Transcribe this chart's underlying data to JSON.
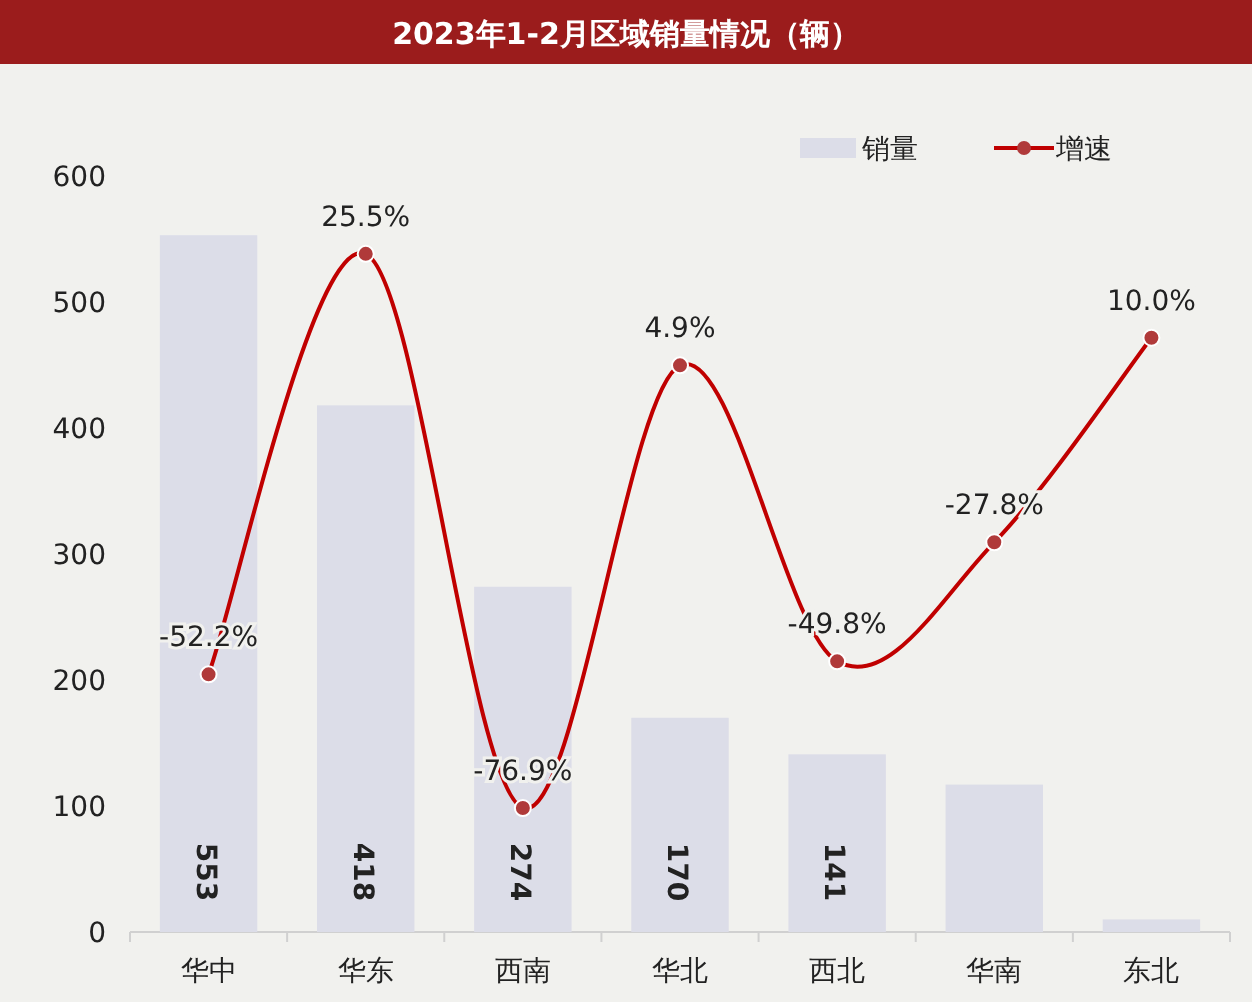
{
  "chart_data": {
    "type": "bar",
    "title": "2023年1-2月区域销量情况（辆）",
    "categories": [
      "华中",
      "华东",
      "西南",
      "华北",
      "西北",
      "华南",
      "东北"
    ],
    "series": [
      {
        "name": "销量",
        "color": "#dcdde8",
        "values": [
          553,
          418,
          274,
          170,
          141,
          117,
          10
        ],
        "value_labels": [
          "553",
          "418",
          "274",
          "170",
          "141",
          null,
          null
        ]
      },
      {
        "name": "增速",
        "type": "line",
        "axis": "y2",
        "color": "#c00000",
        "marker": "circle",
        "values": [
          -52.2,
          25.5,
          -76.9,
          4.9,
          -49.8,
          -27.8,
          10.0
        ],
        "value_labels": [
          "-52.2%",
          "25.5%",
          "-76.9%",
          "4.9%",
          "-49.8%",
          "-27.8%",
          "10.0%"
        ]
      }
    ],
    "ylim": [
      0,
      600
    ],
    "yticks": [
      0,
      100,
      200,
      300,
      400,
      500,
      600
    ],
    "legend": "top right",
    "grid": false
  }
}
